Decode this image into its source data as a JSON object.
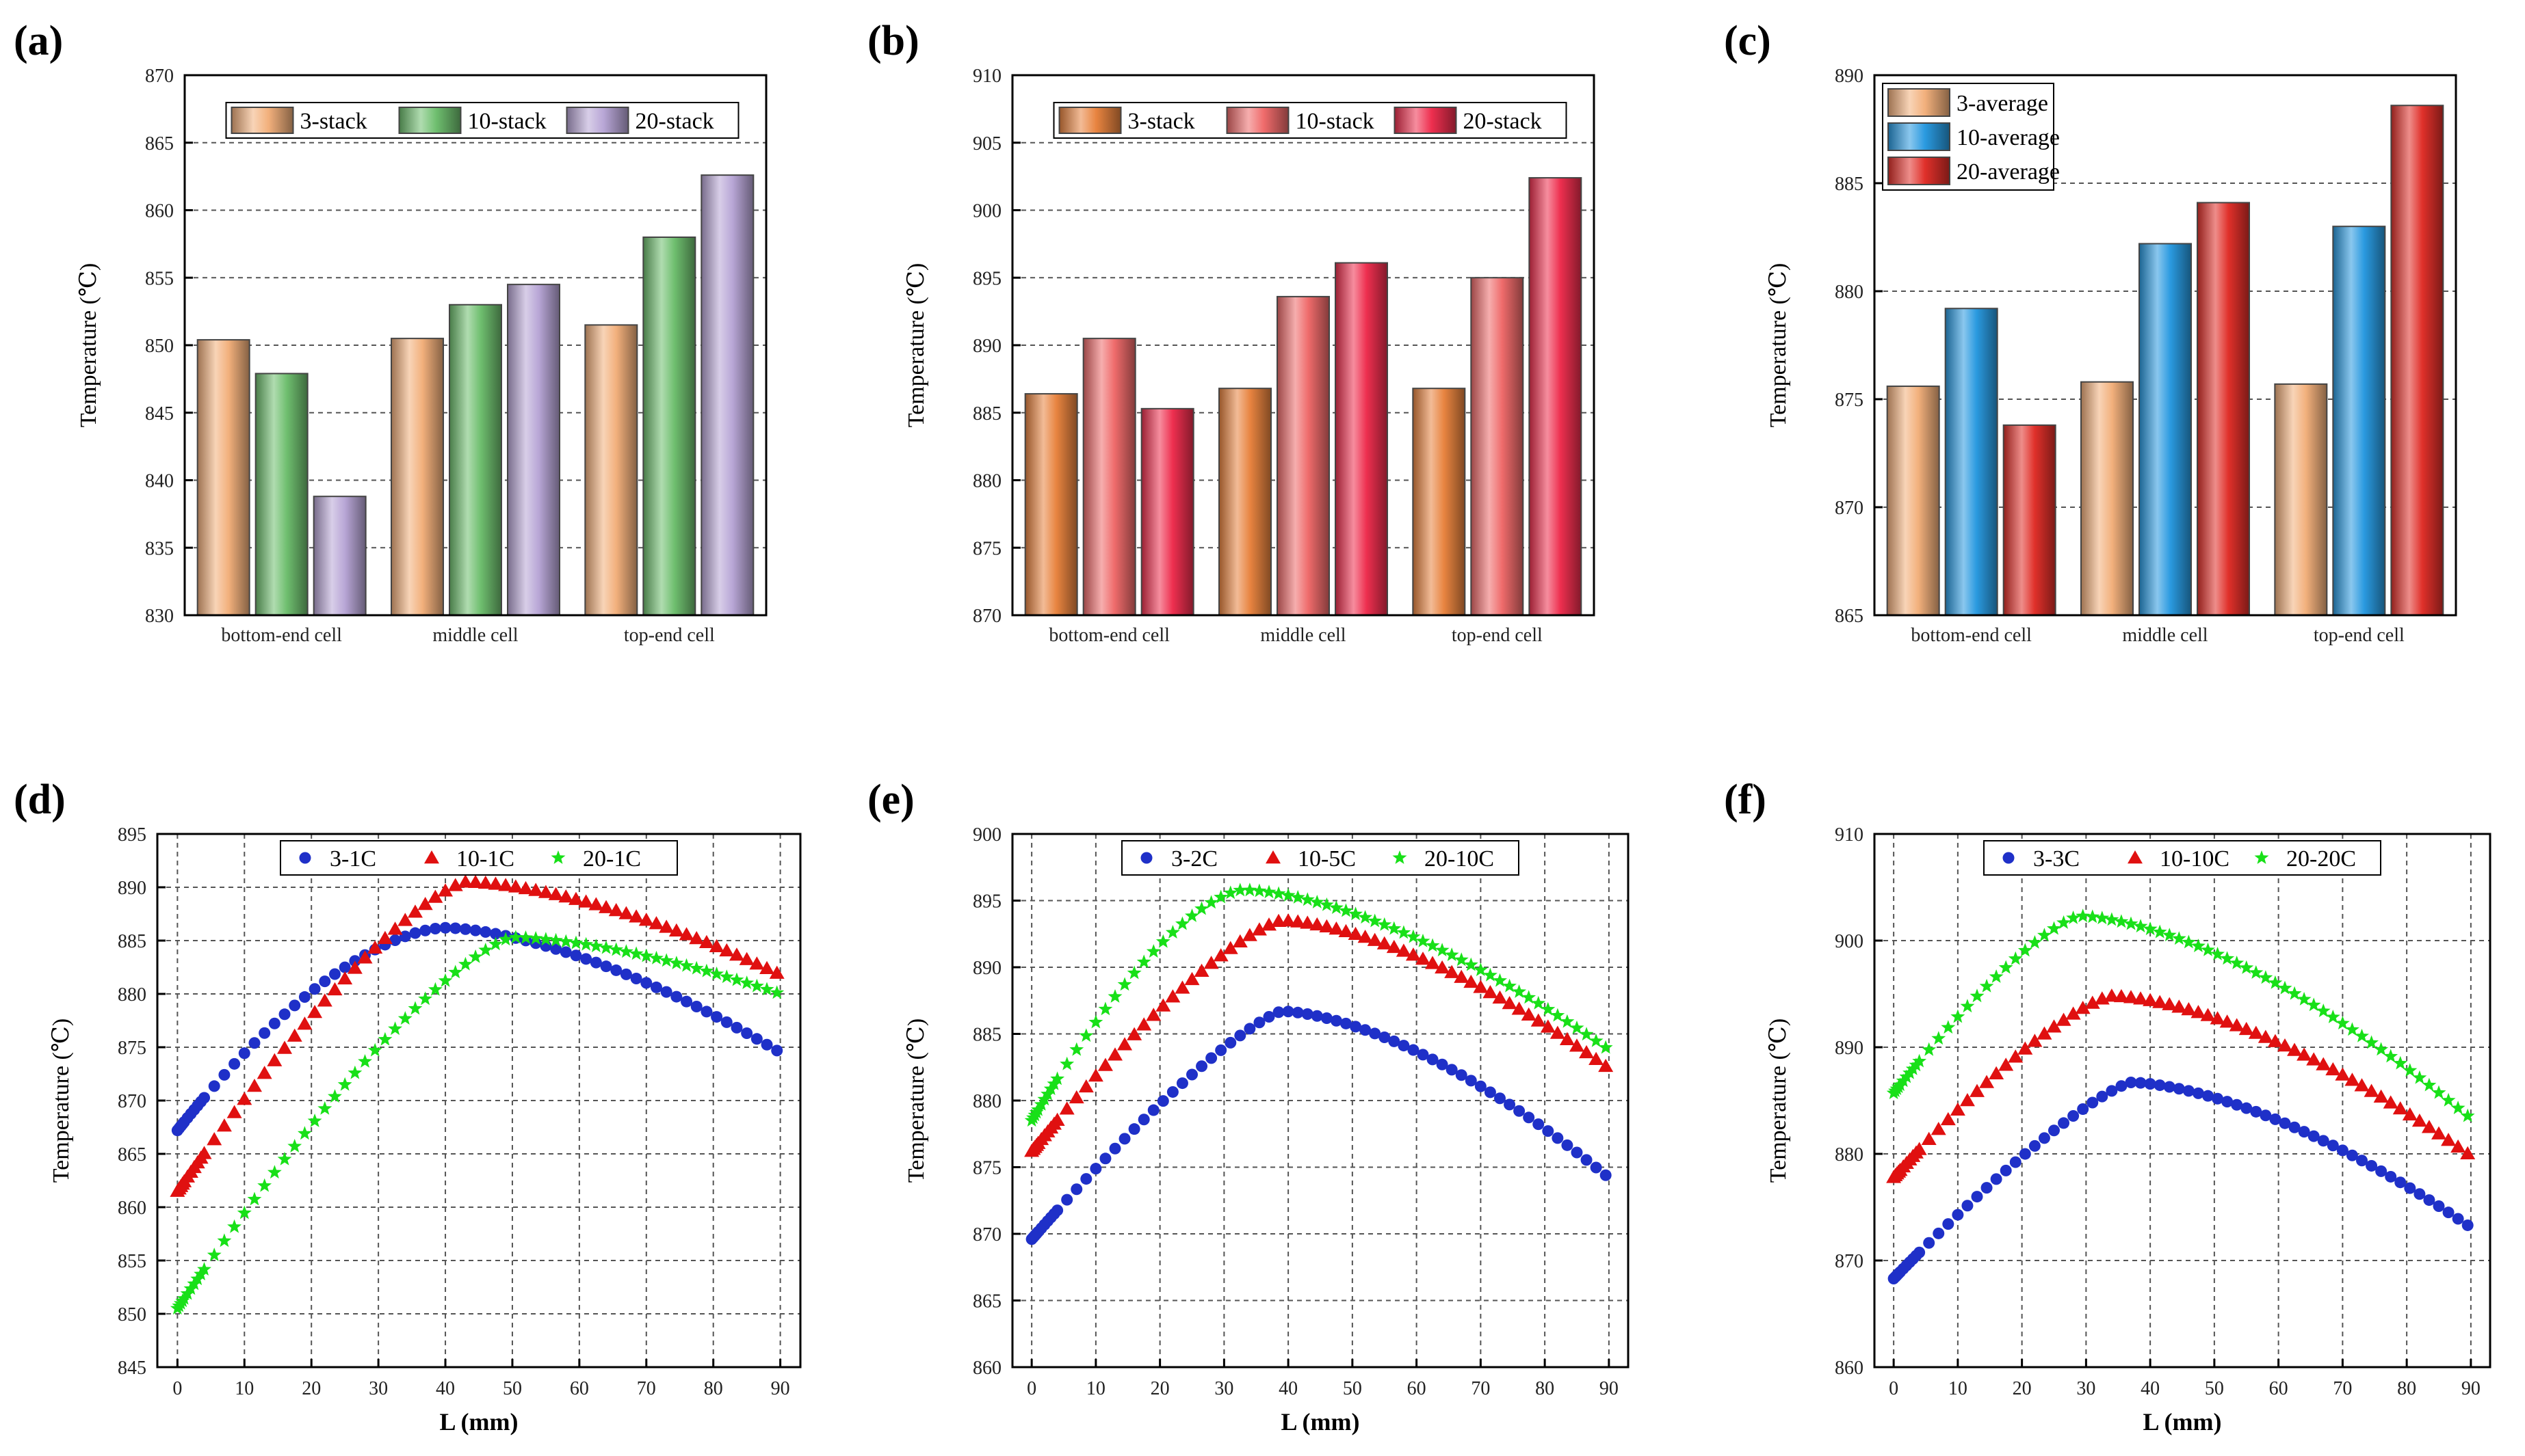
{
  "panels": [
    {
      "label": "(a)"
    },
    {
      "label": "(b)"
    },
    {
      "label": "(c)"
    },
    {
      "label": "(d)"
    },
    {
      "label": "(e)"
    },
    {
      "label": "(f)"
    }
  ],
  "colors": {
    "a": [
      "#f2b07c",
      "#6fbf6f",
      "#b8a6d6"
    ],
    "b": [
      "#e88440",
      "#ef6b6b",
      "#ee2f4f"
    ],
    "c": [
      "#f2b07c",
      "#2a9ae0",
      "#e0302a"
    ],
    "scatter": [
      "#1f30c8",
      "#e01010",
      "#18e018"
    ]
  },
  "chart_data": [
    {
      "type": "bar",
      "panel": "(a)",
      "categories": [
        "bottom-end cell",
        "middle cell",
        "top-end cell"
      ],
      "series": [
        {
          "name": "3-stack",
          "values": [
            850.4,
            850.5,
            851.5
          ]
        },
        {
          "name": "10-stack",
          "values": [
            847.9,
            853.0,
            858.0
          ]
        },
        {
          "name": "20-stack",
          "values": [
            838.8,
            854.5,
            862.6
          ]
        }
      ],
      "ylabel": "Temperature (℃)",
      "ylim": [
        830,
        870
      ],
      "yticks": [
        830,
        835,
        840,
        845,
        850,
        855,
        860,
        865,
        870
      ],
      "legend": "top-center"
    },
    {
      "type": "bar",
      "panel": "(b)",
      "categories": [
        "bottom-end cell",
        "middle cell",
        "top-end cell"
      ],
      "series": [
        {
          "name": "3-stack",
          "values": [
            886.4,
            886.8,
            886.8
          ]
        },
        {
          "name": "10-stack",
          "values": [
            890.5,
            893.6,
            895.0
          ]
        },
        {
          "name": "20-stack",
          "values": [
            885.3,
            896.1,
            902.4
          ]
        }
      ],
      "ylabel": "Temperature (℃)",
      "ylim": [
        870,
        910
      ],
      "yticks": [
        870,
        875,
        880,
        885,
        890,
        895,
        900,
        905,
        910
      ],
      "legend": "top-center"
    },
    {
      "type": "bar",
      "panel": "(c)",
      "categories": [
        "bottom-end cell",
        "middle cell",
        "top-end cell"
      ],
      "series": [
        {
          "name": "3-average",
          "values": [
            875.6,
            875.8,
            875.7
          ]
        },
        {
          "name": "10-average",
          "values": [
            879.2,
            882.2,
            883.0
          ]
        },
        {
          "name": "20-average",
          "values": [
            873.8,
            884.1,
            888.6
          ]
        }
      ],
      "ylabel": "Temperature (℃)",
      "ylim": [
        865,
        890
      ],
      "yticks": [
        865,
        870,
        875,
        880,
        885,
        890
      ],
      "legend": "top-left"
    },
    {
      "type": "scatter",
      "panel": "(d)",
      "series": [
        {
          "name": "3-1C",
          "marker": "circle",
          "start": 867.2,
          "peak": 886.2,
          "peakx": 40,
          "end": 874.5,
          "k": 0.75
        },
        {
          "name": "10-1C",
          "marker": "triangle",
          "start": 861.5,
          "peak": 890.5,
          "peakx": 43,
          "end": 881.8,
          "k": 0.6
        },
        {
          "name": "20-1C",
          "marker": "star",
          "start": 850.5,
          "peak": 885.3,
          "peakx": 50,
          "end": 880.0,
          "k": 0.6
        }
      ],
      "xlabel": "L (mm)",
      "ylabel": "Temperature (℃)",
      "xlim": [
        -3,
        93
      ],
      "xticks": [
        0,
        10,
        20,
        30,
        40,
        50,
        60,
        70,
        80,
        90
      ],
      "ylim": [
        845,
        895
      ],
      "yticks": [
        845,
        850,
        855,
        860,
        865,
        870,
        875,
        880,
        885,
        890,
        895
      ],
      "legend": "top-center"
    },
    {
      "type": "scatter",
      "panel": "(e)",
      "series": [
        {
          "name": "3-2C",
          "marker": "circle",
          "start": 869.6,
          "peak": 886.7,
          "peakx": 39,
          "end": 874.2,
          "k": 0.55
        },
        {
          "name": "10-5C",
          "marker": "triangle",
          "start": 876.2,
          "peak": 893.5,
          "peakx": 39,
          "end": 882.4,
          "k": 0.6
        },
        {
          "name": "20-10C",
          "marker": "star",
          "start": 878.5,
          "peak": 895.8,
          "peakx": 33,
          "end": 883.8,
          "k": 0.7
        }
      ],
      "xlabel": "L (mm)",
      "ylabel": "Temperature (℃)",
      "xlim": [
        -3,
        93
      ],
      "xticks": [
        0,
        10,
        20,
        30,
        40,
        50,
        60,
        70,
        80,
        90
      ],
      "ylim": [
        860,
        900
      ],
      "yticks": [
        860,
        865,
        870,
        875,
        880,
        885,
        890,
        895,
        900
      ],
      "legend": "top-center"
    },
    {
      "type": "scatter",
      "panel": "(f)",
      "series": [
        {
          "name": "3-3C",
          "marker": "circle",
          "start": 868.3,
          "peak": 886.7,
          "peakx": 37,
          "end": 873.1,
          "k": 0.55
        },
        {
          "name": "10-10C",
          "marker": "triangle",
          "start": 877.8,
          "peak": 894.8,
          "peakx": 34,
          "end": 879.8,
          "k": 0.6
        },
        {
          "name": "20-20C",
          "marker": "star",
          "start": 885.7,
          "peak": 902.3,
          "peakx": 29,
          "end": 883.3,
          "k": 0.6
        }
      ],
      "xlabel": "L (mm)",
      "ylabel": "Temperature (℃)",
      "xlim": [
        -3,
        93
      ],
      "xticks": [
        0,
        10,
        20,
        30,
        40,
        50,
        60,
        70,
        80,
        90
      ],
      "ylim": [
        860,
        910
      ],
      "yticks": [
        860,
        870,
        880,
        890,
        900,
        910
      ],
      "legend": "top-center"
    }
  ]
}
